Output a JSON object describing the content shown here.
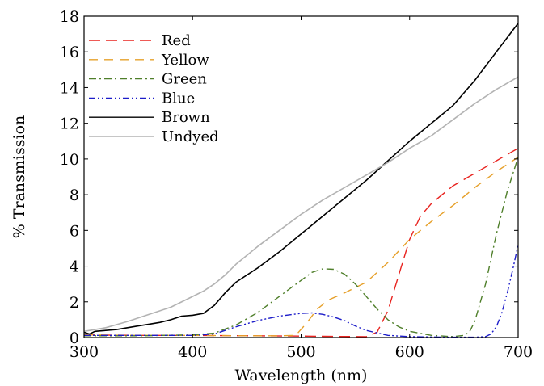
{
  "chart_data": {
    "type": "line",
    "title": "",
    "xlabel": "Wavelength (nm)",
    "ylabel": "% Transmission",
    "xlim": [
      300,
      700
    ],
    "ylim": [
      0,
      18
    ],
    "xticks": [
      300,
      400,
      500,
      600,
      700
    ],
    "yticks": [
      0,
      2,
      4,
      6,
      8,
      10,
      12,
      14,
      16,
      18
    ],
    "grid": false,
    "legend_position": "top-left",
    "series": [
      {
        "name": "Red",
        "color": "#e8231f",
        "dash": "dashed",
        "x": [
          300,
          350,
          400,
          450,
          500,
          520,
          540,
          560,
          570,
          580,
          590,
          600,
          610,
          620,
          630,
          640,
          660,
          680,
          700
        ],
        "y": [
          0.15,
          0.12,
          0.12,
          0.1,
          0.08,
          0.07,
          0.06,
          0.05,
          0.3,
          1.5,
          3.5,
          5.5,
          6.8,
          7.5,
          8.0,
          8.5,
          9.2,
          9.9,
          10.6
        ]
      },
      {
        "name": "Yellow",
        "color": "#e6a02a",
        "dash": "long-dashed",
        "x": [
          300,
          350,
          400,
          450,
          480,
          495,
          505,
          515,
          525,
          540,
          560,
          580,
          600,
          620,
          640,
          660,
          680,
          700
        ],
        "y": [
          0.15,
          0.12,
          0.12,
          0.1,
          0.1,
          0.12,
          0.8,
          1.6,
          2.1,
          2.5,
          3.1,
          4.2,
          5.5,
          6.5,
          7.4,
          8.4,
          9.3,
          10.1
        ]
      },
      {
        "name": "Green",
        "color": "#4f7f2a",
        "dash": "dash-dot",
        "x": [
          300,
          350,
          400,
          420,
          440,
          460,
          480,
          500,
          510,
          520,
          530,
          540,
          550,
          560,
          570,
          580,
          590,
          600,
          620,
          640,
          650,
          655,
          660,
          670,
          680,
          690,
          700
        ],
        "y": [
          0.1,
          0.1,
          0.15,
          0.25,
          0.7,
          1.4,
          2.3,
          3.2,
          3.65,
          3.85,
          3.82,
          3.55,
          3.0,
          2.3,
          1.6,
          1.0,
          0.6,
          0.35,
          0.12,
          0.05,
          0.12,
          0.3,
          0.9,
          3.0,
          5.8,
          8.2,
          10.1
        ]
      },
      {
        "name": "Blue",
        "color": "#1c1cc9",
        "dash": "dash-dot-dot",
        "x": [
          300,
          350,
          400,
          420,
          440,
          460,
          480,
          500,
          510,
          520,
          530,
          540,
          550,
          560,
          580,
          600,
          620,
          640,
          660,
          670,
          675,
          680,
          685,
          690,
          695,
          700
        ],
        "y": [
          0.12,
          0.12,
          0.12,
          0.2,
          0.6,
          0.95,
          1.2,
          1.35,
          1.38,
          1.3,
          1.15,
          0.95,
          0.65,
          0.4,
          0.12,
          0.05,
          0.03,
          0.02,
          0.02,
          0.05,
          0.2,
          0.6,
          1.4,
          2.5,
          3.8,
          5.2
        ]
      },
      {
        "name": "Brown",
        "color": "#000000",
        "dash": "solid",
        "x": [
          300,
          305,
          310,
          320,
          330,
          340,
          350,
          360,
          370,
          380,
          390,
          400,
          410,
          420,
          430,
          440,
          460,
          480,
          500,
          520,
          540,
          560,
          580,
          600,
          620,
          640,
          660,
          680,
          700
        ],
        "y": [
          0.3,
          0.2,
          0.35,
          0.4,
          0.45,
          0.55,
          0.65,
          0.75,
          0.85,
          1.0,
          1.2,
          1.25,
          1.35,
          1.8,
          2.5,
          3.1,
          3.9,
          4.8,
          5.8,
          6.8,
          7.8,
          8.8,
          9.9,
          11.0,
          12.0,
          13.0,
          14.4,
          16.0,
          17.6
        ]
      },
      {
        "name": "Undyed",
        "color": "#b3b3b3",
        "dash": "solid",
        "x": [
          300,
          320,
          340,
          360,
          380,
          400,
          410,
          420,
          430,
          440,
          460,
          480,
          500,
          520,
          540,
          560,
          580,
          600,
          620,
          640,
          660,
          680,
          700
        ],
        "y": [
          0.35,
          0.55,
          0.9,
          1.3,
          1.7,
          2.3,
          2.6,
          3.0,
          3.5,
          4.1,
          5.1,
          6.0,
          6.9,
          7.7,
          8.4,
          9.1,
          9.8,
          10.6,
          11.3,
          12.2,
          13.1,
          13.9,
          14.6
        ]
      }
    ]
  }
}
